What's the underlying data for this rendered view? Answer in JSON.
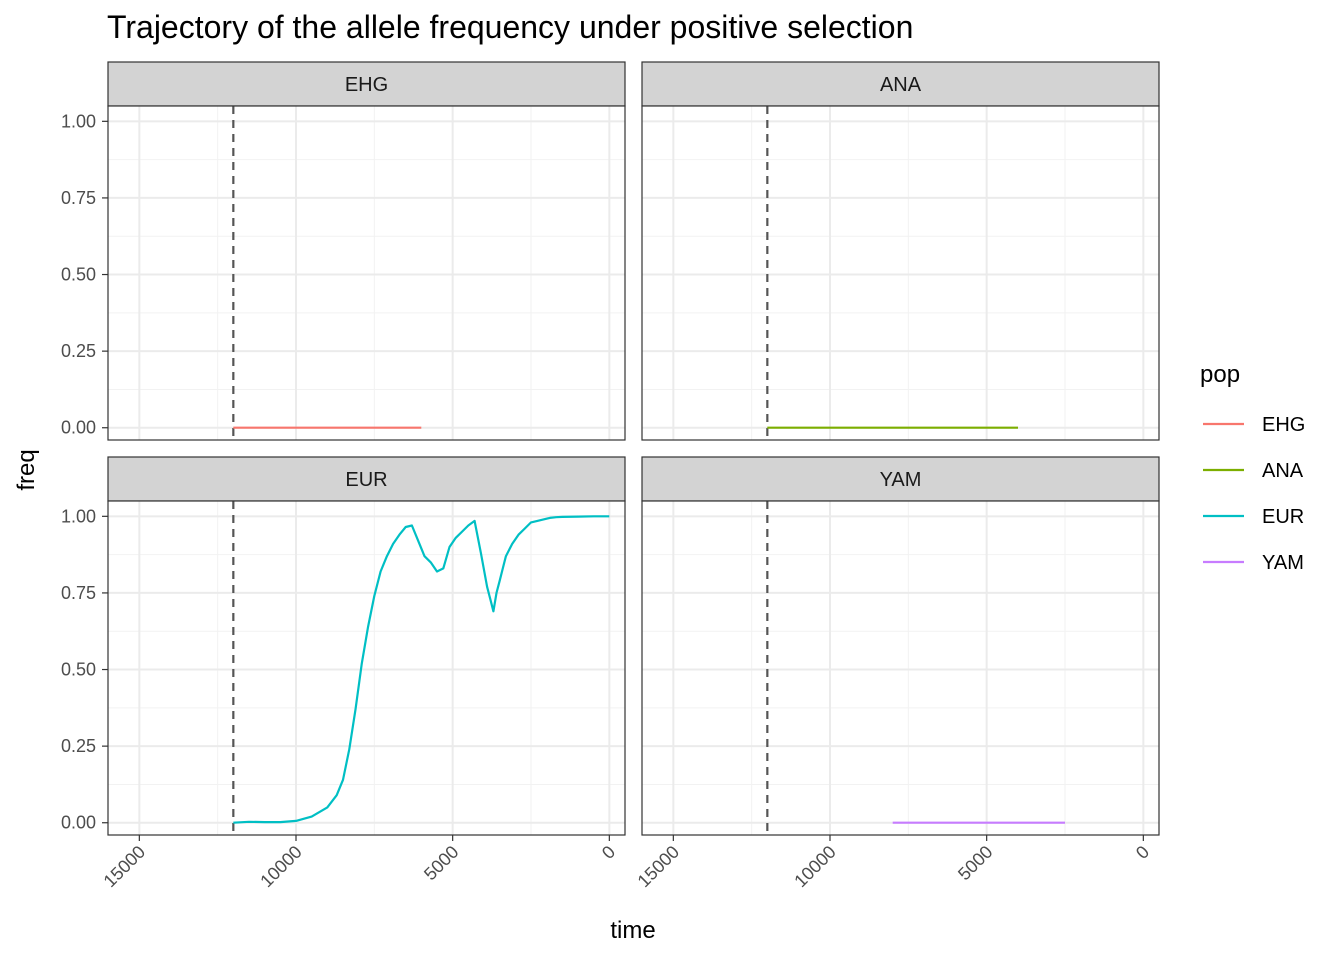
{
  "chart_data": {
    "type": "line",
    "title": "Trajectory of the allele frequency under positive selection",
    "xlabel": "time",
    "ylabel": "freq",
    "x_reversed": true,
    "xlim": [
      16000,
      -500
    ],
    "ylim": [
      -0.04,
      1.05
    ],
    "x_ticks": [
      15000,
      10000,
      5000,
      0
    ],
    "x_tick_labels": [
      "15000",
      "10000",
      "5000",
      "0"
    ],
    "y_ticks": [
      0,
      0.25,
      0.5,
      0.75,
      1.0
    ],
    "y_tick_labels": [
      "0.00",
      "0.25",
      "0.50",
      "0.75",
      "1.00"
    ],
    "grid": true,
    "facet_layout": "2x2",
    "vline": {
      "x": 12000,
      "style": "dashed",
      "color": "#555555"
    },
    "legend": {
      "title": "pop",
      "position": "right"
    },
    "series": [
      {
        "name": "EHG",
        "color": "#F8766D",
        "x": [
          12000,
          6000
        ],
        "y": [
          0,
          0
        ]
      },
      {
        "name": "ANA",
        "color": "#7CAE00",
        "x": [
          12000,
          4000
        ],
        "y": [
          0,
          0
        ]
      },
      {
        "name": "EUR",
        "color": "#00BFC4",
        "x": [
          12000,
          11500,
          11000,
          10500,
          10000,
          9500,
          9000,
          8700,
          8500,
          8300,
          8100,
          7900,
          7700,
          7500,
          7300,
          7100,
          6900,
          6700,
          6500,
          6300,
          6100,
          5900,
          5700,
          5500,
          5300,
          5100,
          4900,
          4700,
          4500,
          4300,
          4100,
          3900,
          3800,
          3700,
          3600,
          3500,
          3400,
          3300,
          3100,
          2900,
          2700,
          2500,
          2300,
          2100,
          1900,
          1700,
          1500,
          1000,
          500,
          0
        ],
        "y": [
          0,
          0.003,
          0.002,
          0.002,
          0.006,
          0.02,
          0.05,
          0.09,
          0.14,
          0.24,
          0.37,
          0.52,
          0.64,
          0.74,
          0.82,
          0.87,
          0.91,
          0.94,
          0.965,
          0.97,
          0.92,
          0.87,
          0.85,
          0.82,
          0.83,
          0.9,
          0.93,
          0.95,
          0.97,
          0.985,
          0.88,
          0.77,
          0.73,
          0.69,
          0.75,
          0.79,
          0.83,
          0.87,
          0.91,
          0.94,
          0.96,
          0.98,
          0.985,
          0.99,
          0.995,
          0.997,
          0.998,
          0.999,
          1.0,
          1.0
        ]
      },
      {
        "name": "YAM",
        "color": "#C77CFF",
        "x": [
          8000,
          2500
        ],
        "y": [
          0,
          0
        ]
      }
    ]
  }
}
